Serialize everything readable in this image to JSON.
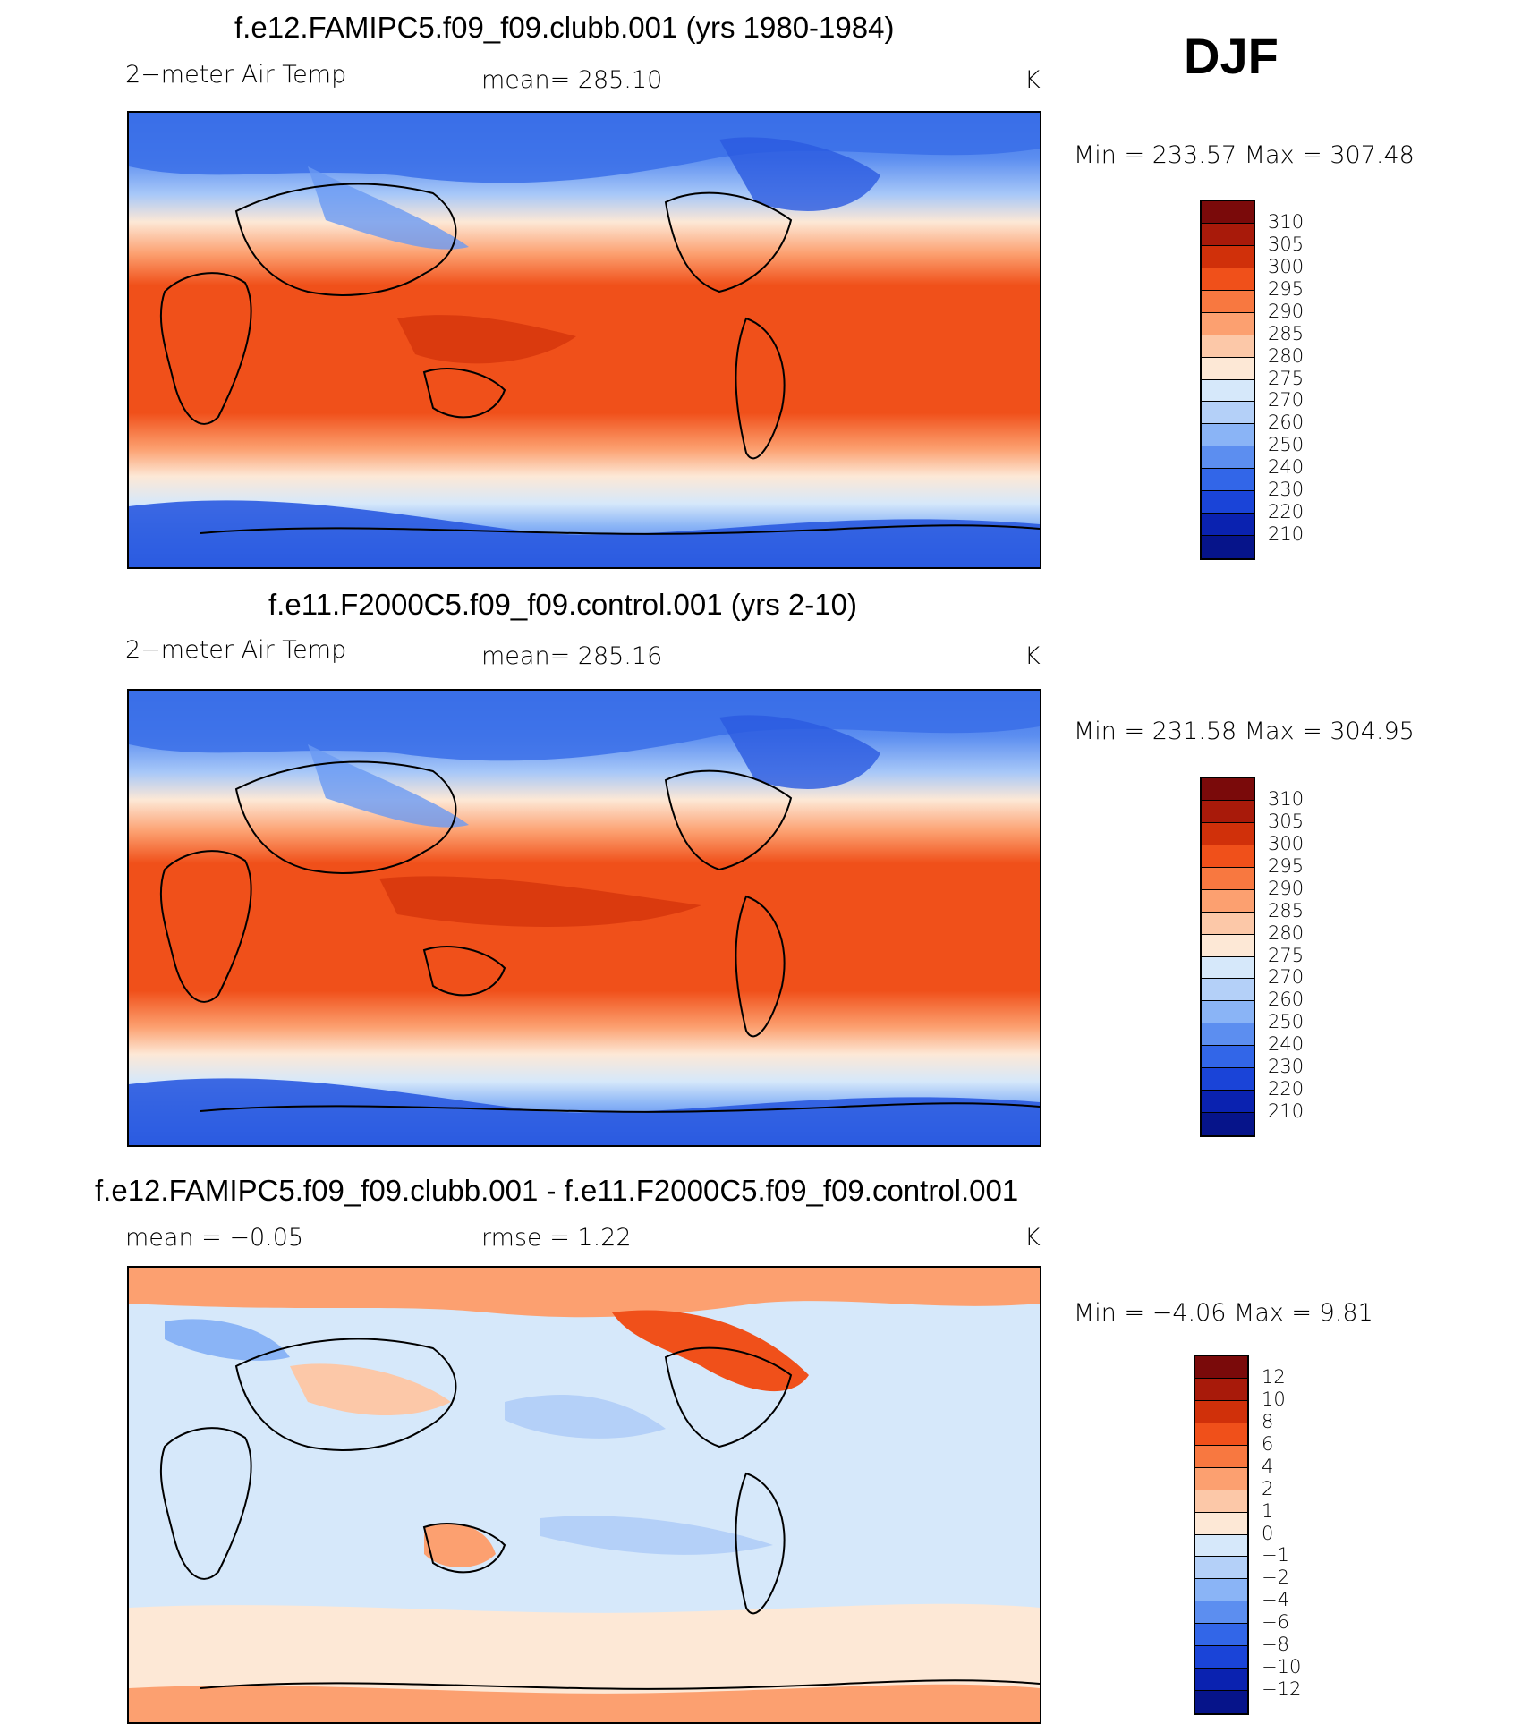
{
  "season": "DJF",
  "panels": [
    {
      "title": "f.e12.FAMIPC5.f09_f09.clubb.001 (yrs 1980-1984)",
      "left_label": "2−meter Air Temp",
      "center_label": "mean=  285.10",
      "units": "K",
      "minmax": "Min  =  233.57  Max  =  307.48",
      "kind": "abs"
    },
    {
      "title": "f.e11.F2000C5.f09_f09.control.001 (yrs 2-10)",
      "left_label": "2−meter Air Temp",
      "center_label": "mean=  285.16",
      "units": "K",
      "minmax": "Min  =  231.58  Max  =  304.95",
      "kind": "abs"
    },
    {
      "title": "f.e12.FAMIPC5.f09_f09.clubb.001 - f.e11.F2000C5.f09_f09.control.001",
      "left_label": "mean  =    −0.05",
      "center_label": "rmse  =     1.22",
      "units": "K",
      "minmax": "Min  =    −4.06  Max  =      9.81",
      "kind": "diff"
    }
  ],
  "colorbars": {
    "abs": {
      "labels": [
        "310",
        "305",
        "300",
        "295",
        "290",
        "285",
        "280",
        "275",
        "270",
        "260",
        "250",
        "240",
        "230",
        "220",
        "210"
      ],
      "colors": [
        "#7a0a0a",
        "#a81a0a",
        "#d0300a",
        "#f0501a",
        "#f87840",
        "#fca070",
        "#fcc8a8",
        "#fde8d6",
        "#d6e8fa",
        "#b4d0f8",
        "#8ab4f6",
        "#5c8ef0",
        "#3266e8",
        "#1a44d8",
        "#0a22b0",
        "#06148a"
      ]
    },
    "diff": {
      "labels": [
        "12",
        "10",
        "8",
        "6",
        "4",
        "2",
        "1",
        "0",
        "−1",
        "−2",
        "−4",
        "−6",
        "−8",
        "−10",
        "−12"
      ],
      "colors": [
        "#7a0a0a",
        "#a81a0a",
        "#d0300a",
        "#f0501a",
        "#f87840",
        "#fca070",
        "#fcc8a8",
        "#fde8d6",
        "#d6e8fa",
        "#b4d0f8",
        "#8ab4f6",
        "#5c8ef0",
        "#3266e8",
        "#1a44d8",
        "#0a22b0",
        "#06148a"
      ]
    }
  }
}
